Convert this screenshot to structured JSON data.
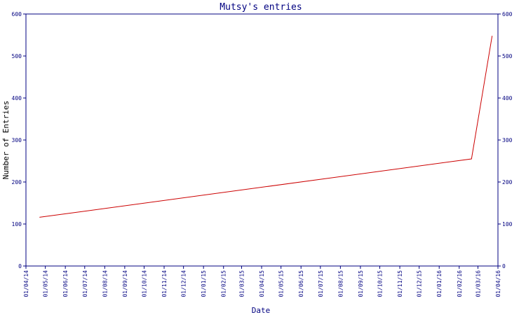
{
  "chart_data": {
    "type": "line",
    "title": "Mutsy's entries",
    "xlabel": "Date",
    "ylabel": "Number of Entries",
    "ylim": [
      0,
      600
    ],
    "yticks": [
      0,
      100,
      200,
      300,
      400,
      500,
      600
    ],
    "x_ticks": [
      "01/04/14",
      "01/05/14",
      "01/06/14",
      "01/07/14",
      "01/08/14",
      "01/09/14",
      "01/10/14",
      "01/11/14",
      "01/12/14",
      "01/01/15",
      "01/02/15",
      "01/03/15",
      "01/04/15",
      "01/05/15",
      "01/06/15",
      "01/07/15",
      "01/08/15",
      "01/09/15",
      "01/10/15",
      "01/11/15",
      "01/12/15",
      "01/01/16",
      "01/02/16",
      "01/03/16",
      "01/04/16"
    ],
    "xlim": [
      "2014-04-01",
      "2016-04-01"
    ],
    "series": [
      {
        "color": "#cc0000",
        "points": [
          {
            "x": "2014-04-22",
            "y": 116
          },
          {
            "x": "2016-02-20",
            "y": 255
          },
          {
            "x": "2016-03-23",
            "y": 548
          }
        ]
      }
    ],
    "grid": false,
    "right_axis_mirrors_left": true
  },
  "colors": {
    "axis": "#000080",
    "title": "#000080",
    "line": "#cc0000"
  }
}
